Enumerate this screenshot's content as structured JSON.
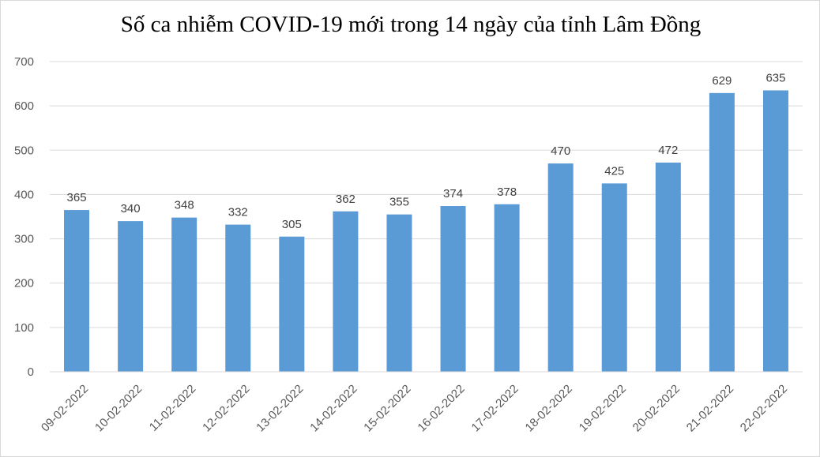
{
  "chart_data": {
    "type": "bar",
    "title": "Số ca nhiễm COVID-19 mới trong 14 ngày của tỉnh Lâm Đồng",
    "xlabel": "",
    "ylabel": "",
    "categories": [
      "09-02-2022",
      "10-02-2022",
      "11-02-2022",
      "12-02-2022",
      "13-02-2022",
      "14-02-2022",
      "15-02-2022",
      "16-02-2022",
      "17-02-2022",
      "18-02-2022",
      "19-02-2022",
      "20-02-2022",
      "21-02-2022",
      "22-02-2022"
    ],
    "values": [
      365,
      340,
      348,
      332,
      305,
      362,
      355,
      374,
      378,
      470,
      425,
      472,
      629,
      635
    ],
    "ylim": [
      0,
      700
    ],
    "yticks": [
      0,
      100,
      200,
      300,
      400,
      500,
      600,
      700
    ],
    "grid": true,
    "legend": "none",
    "bar_color": "#5B9BD5",
    "grid_color": "#d9d9d9"
  }
}
